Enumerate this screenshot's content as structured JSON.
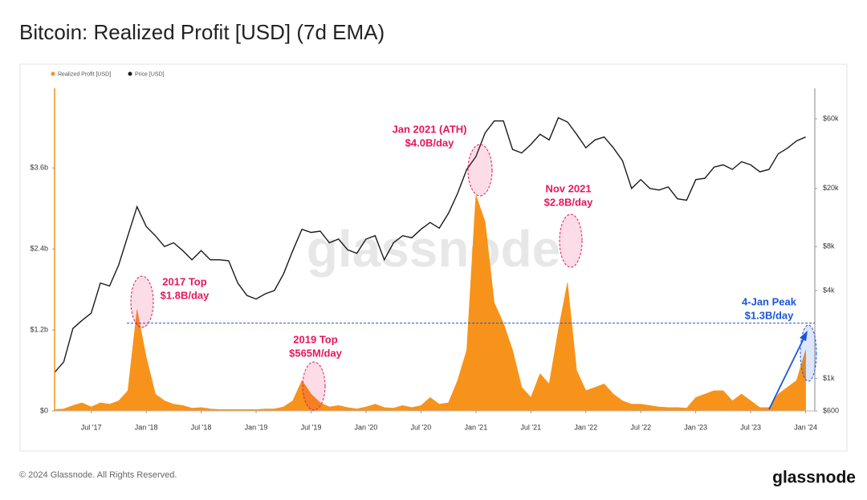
{
  "chart_data": {
    "type": "line",
    "title": "Bitcoin: Realized Profit [USD] (7d EMA)",
    "x": [
      "2017-03",
      "2017-04",
      "2017-05",
      "2017-06",
      "2017-07",
      "2017-08",
      "2017-09",
      "2017-10",
      "2017-11",
      "2017-12",
      "2018-01",
      "2018-02",
      "2018-03",
      "2018-04",
      "2018-05",
      "2018-06",
      "2018-07",
      "2018-08",
      "2018-09",
      "2018-10",
      "2018-11",
      "2018-12",
      "2019-01",
      "2019-02",
      "2019-03",
      "2019-04",
      "2019-05",
      "2019-06",
      "2019-07",
      "2019-08",
      "2019-09",
      "2019-10",
      "2019-11",
      "2019-12",
      "2020-01",
      "2020-02",
      "2020-03",
      "2020-04",
      "2020-05",
      "2020-06",
      "2020-07",
      "2020-08",
      "2020-09",
      "2020-10",
      "2020-11",
      "2020-12",
      "2021-01",
      "2021-02",
      "2021-03",
      "2021-04",
      "2021-05",
      "2021-06",
      "2021-07",
      "2021-08",
      "2021-09",
      "2021-10",
      "2021-11",
      "2021-12",
      "2022-01",
      "2022-02",
      "2022-03",
      "2022-04",
      "2022-05",
      "2022-06",
      "2022-07",
      "2022-08",
      "2022-09",
      "2022-10",
      "2022-11",
      "2022-12",
      "2023-01",
      "2023-02",
      "2023-03",
      "2023-04",
      "2023-05",
      "2023-06",
      "2023-07",
      "2023-08",
      "2023-09",
      "2023-10",
      "2023-11",
      "2023-12",
      "2024-01"
    ],
    "series": [
      {
        "name": "Realized Profit [USD]",
        "type": "area",
        "color": "#f7931a",
        "values": [
          0.02,
          0.03,
          0.08,
          0.12,
          0.06,
          0.12,
          0.1,
          0.15,
          0.3,
          1.5,
          0.8,
          0.25,
          0.15,
          0.1,
          0.08,
          0.04,
          0.05,
          0.03,
          0.02,
          0.02,
          0.02,
          0.02,
          0.02,
          0.03,
          0.03,
          0.06,
          0.15,
          0.45,
          0.25,
          0.12,
          0.06,
          0.08,
          0.05,
          0.03,
          0.06,
          0.1,
          0.05,
          0.04,
          0.08,
          0.05,
          0.08,
          0.2,
          0.1,
          0.12,
          0.45,
          0.9,
          3.2,
          2.8,
          1.6,
          1.3,
          0.9,
          0.35,
          0.2,
          0.55,
          0.4,
          1.2,
          1.9,
          0.6,
          0.3,
          0.35,
          0.4,
          0.25,
          0.15,
          0.1,
          0.1,
          0.08,
          0.06,
          0.05,
          0.05,
          0.04,
          0.2,
          0.25,
          0.3,
          0.3,
          0.15,
          0.25,
          0.15,
          0.05,
          0.05,
          0.25,
          0.35,
          0.45,
          0.9
        ]
      },
      {
        "name": "Price [USD]",
        "type": "line",
        "axis": "y2",
        "color": "#1a1a1a",
        "values": [
          1100,
          1300,
          2200,
          2500,
          2800,
          4500,
          4300,
          6000,
          9500,
          15000,
          11000,
          9500,
          8000,
          8500,
          7500,
          6500,
          7500,
          6500,
          6500,
          6400,
          4500,
          3700,
          3500,
          3800,
          4000,
          5200,
          7500,
          10500,
          10000,
          10200,
          8500,
          9000,
          7600,
          7200,
          9000,
          9500,
          6500,
          8500,
          9500,
          9200,
          10500,
          11700,
          10700,
          13500,
          18500,
          27000,
          33000,
          48000,
          58000,
          58000,
          37000,
          35000,
          40000,
          47000,
          43000,
          61000,
          57000,
          47000,
          38000,
          43000,
          45000,
          38000,
          31000,
          20000,
          23000,
          20000,
          19500,
          20500,
          17000,
          16600,
          23000,
          23500,
          28000,
          29000,
          27000,
          30500,
          29000,
          26000,
          27000,
          34500,
          37700,
          42300,
          45000
        ]
      }
    ],
    "xlim": [
      "2017-03",
      "2024-02"
    ],
    "xticks": [
      {
        "value": "2017-07",
        "label": "Jul '17"
      },
      {
        "value": "2018-01",
        "label": "Jan '18"
      },
      {
        "value": "2018-07",
        "label": "Jul '18"
      },
      {
        "value": "2019-01",
        "label": "Jan '19"
      },
      {
        "value": "2019-07",
        "label": "Jul '19"
      },
      {
        "value": "2020-01",
        "label": "Jan '20"
      },
      {
        "value": "2020-07",
        "label": "Jul '20"
      },
      {
        "value": "2021-01",
        "label": "Jan '21"
      },
      {
        "value": "2021-07",
        "label": "Jul '21"
      },
      {
        "value": "2022-01",
        "label": "Jan '22"
      },
      {
        "value": "2022-07",
        "label": "Jul '22"
      },
      {
        "value": "2023-01",
        "label": "Jan '23"
      },
      {
        "value": "2023-07",
        "label": "Jul '23"
      },
      {
        "value": "2024-01",
        "label": "Jan '24"
      }
    ],
    "ylim": [
      0,
      4.78
    ],
    "yticks": [
      {
        "value": 0,
        "label": "$0"
      },
      {
        "value": 1.2,
        "label": "$1.2b"
      },
      {
        "value": 2.4,
        "label": "$2.4b"
      },
      {
        "value": 3.6,
        "label": "$3.6b"
      }
    ],
    "y2lim": [
      600,
      97000
    ],
    "y2_log": true,
    "y2ticks": [
      {
        "value": 600,
        "label": "$600"
      },
      {
        "value": 1000,
        "label": "$1k"
      },
      {
        "value": 4000,
        "label": "$4k"
      },
      {
        "value": 8000,
        "label": "$8k"
      },
      {
        "value": 20000,
        "label": "$20k"
      },
      {
        "value": 60000,
        "label": "$60k"
      }
    ],
    "reference_line": {
      "value": 1.3,
      "color": "#1a56db"
    },
    "annotations": [
      {
        "lines": [
          "2017 Top",
          "$1.8B/day"
        ],
        "color": "#e8155e"
      },
      {
        "lines": [
          "2019 Top",
          "$565M/day"
        ],
        "color": "#e8155e"
      },
      {
        "lines": [
          "Jan 2021 (ATH)",
          "$4.0B/day"
        ],
        "color": "#e8155e"
      },
      {
        "lines": [
          "Nov 2021",
          "$2.8B/day"
        ],
        "color": "#e8155e"
      },
      {
        "lines": [
          "4-Jan Peak",
          "$1.3B/day"
        ],
        "color": "#1a56db"
      }
    ],
    "watermark": "glassnode"
  },
  "footer": {
    "copyright": "© 2024 Glassnode. All Rights Reserved.",
    "logo": "glassnode"
  }
}
